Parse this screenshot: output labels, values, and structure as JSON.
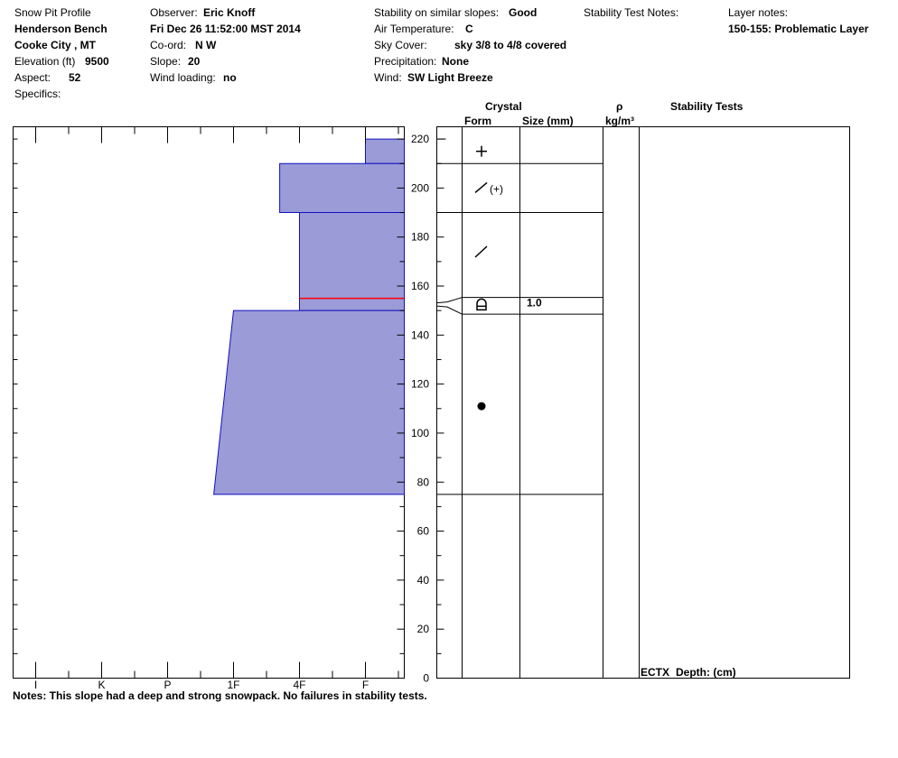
{
  "header": {
    "title": "Snow Pit Profile",
    "location": "Henderson Bench",
    "city": "Cooke City , MT",
    "elevation_label": "Elevation (ft)",
    "elevation_value": "9500",
    "aspect_label": "Aspect:",
    "aspect_value": "52",
    "specifics_label": "Specifics:",
    "observer_label": "Observer:",
    "observer_value": "Eric Knoff",
    "datetime": "Fri Dec 26 11:52:00 MST 2014",
    "coord_label": "Co-ord:",
    "coord_value": "N  W",
    "slope_label": "Slope:",
    "slope_value": "20",
    "wind_loading_label": "Wind loading:",
    "wind_loading_value": "no",
    "stability_label": "Stability on similar slopes:",
    "stability_value": "Good",
    "air_temp_label": "Air Temperature:",
    "air_temp_value": "C",
    "sky_label": "Sky Cover:",
    "sky_value": "sky 3/8 to 4/8 covered",
    "precip_label": "Precipitation:",
    "precip_value": "None",
    "wind_label": "Wind:",
    "wind_value": "SW Light Breeze",
    "stability_notes_label": "Stability Test Notes:",
    "layer_notes_label": "Layer notes:",
    "layer_notes_value": "150-155: Problematic Layer"
  },
  "columns": {
    "crystal": "Crystal",
    "form": "Form",
    "size": "Size (mm)",
    "rho": "ρ",
    "density_unit": "kg/m³",
    "stability_tests": "Stability Tests"
  },
  "chart_data": {
    "type": "snow-profile",
    "depth_unit": "cm",
    "ylim": [
      0,
      225
    ],
    "y_ticks": [
      0,
      20,
      40,
      60,
      80,
      100,
      120,
      140,
      160,
      180,
      200,
      220
    ],
    "hardness_labels": [
      "I",
      "K",
      "P",
      "1F",
      "4F",
      "F"
    ],
    "layers": [
      {
        "bottom": 210,
        "top": 220,
        "hardness_bottom": 5.0,
        "hardness_top": 5.0,
        "form": "+",
        "size": ""
      },
      {
        "bottom": 190,
        "top": 210,
        "hardness_bottom": 3.7,
        "hardness_top": 3.7,
        "form": "/(+)",
        "size": ""
      },
      {
        "bottom": 155,
        "top": 190,
        "hardness_bottom": 4.0,
        "hardness_top": 4.0,
        "form": "/",
        "size": ""
      },
      {
        "bottom": 150,
        "top": 155,
        "hardness_bottom": 4.0,
        "hardness_top": 4.0,
        "form": "surface-hoar",
        "size": "1.0"
      },
      {
        "bottom": 75,
        "top": 150,
        "hardness_bottom": 2.7,
        "hardness_top": 3.0,
        "form": "round",
        "size": ""
      }
    ],
    "problem_layer_depth": 155,
    "stability_test": "ECTX",
    "depth_label": "Depth: (cm)"
  },
  "notes": "Notes:  This slope had a deep and strong snowpack. No failures in stability tests."
}
